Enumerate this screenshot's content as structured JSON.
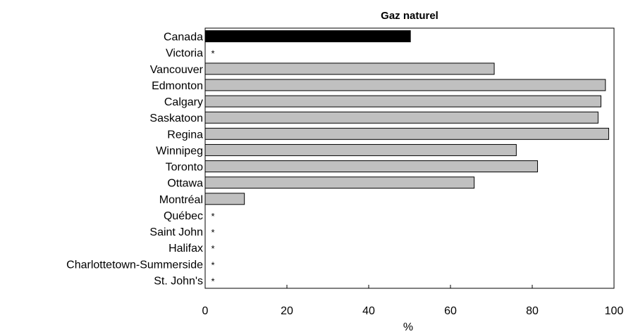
{
  "chart_data": {
    "type": "bar",
    "orientation": "horizontal",
    "title": "Gaz naturel",
    "xlabel": "%",
    "ylabel": "",
    "xlim": [
      0,
      100
    ],
    "xticks": [
      0,
      20,
      40,
      60,
      80,
      100
    ],
    "grid": false,
    "legend": "none",
    "categories": [
      "Canada",
      "Victoria",
      "Vancouver",
      "Edmonton",
      "Calgary",
      "Saskatoon",
      "Regina",
      "Winnipeg",
      "Toronto",
      "Ottawa",
      "Montréal",
      "Québec",
      "Saint John",
      "Halifax",
      "Charlottetown-Summerside",
      "St. John's"
    ],
    "values": [
      50.2,
      null,
      70.7,
      97.9,
      96.8,
      96.1,
      98.7,
      76.1,
      81.3,
      65.8,
      9.6,
      null,
      null,
      null,
      null,
      null
    ],
    "missing_marker": "*",
    "highlight_category": "Canada",
    "colors": {
      "highlight": "#000000",
      "bar": "#c0c0c0",
      "bar_stroke": "#000000",
      "axis": "#000000"
    }
  }
}
